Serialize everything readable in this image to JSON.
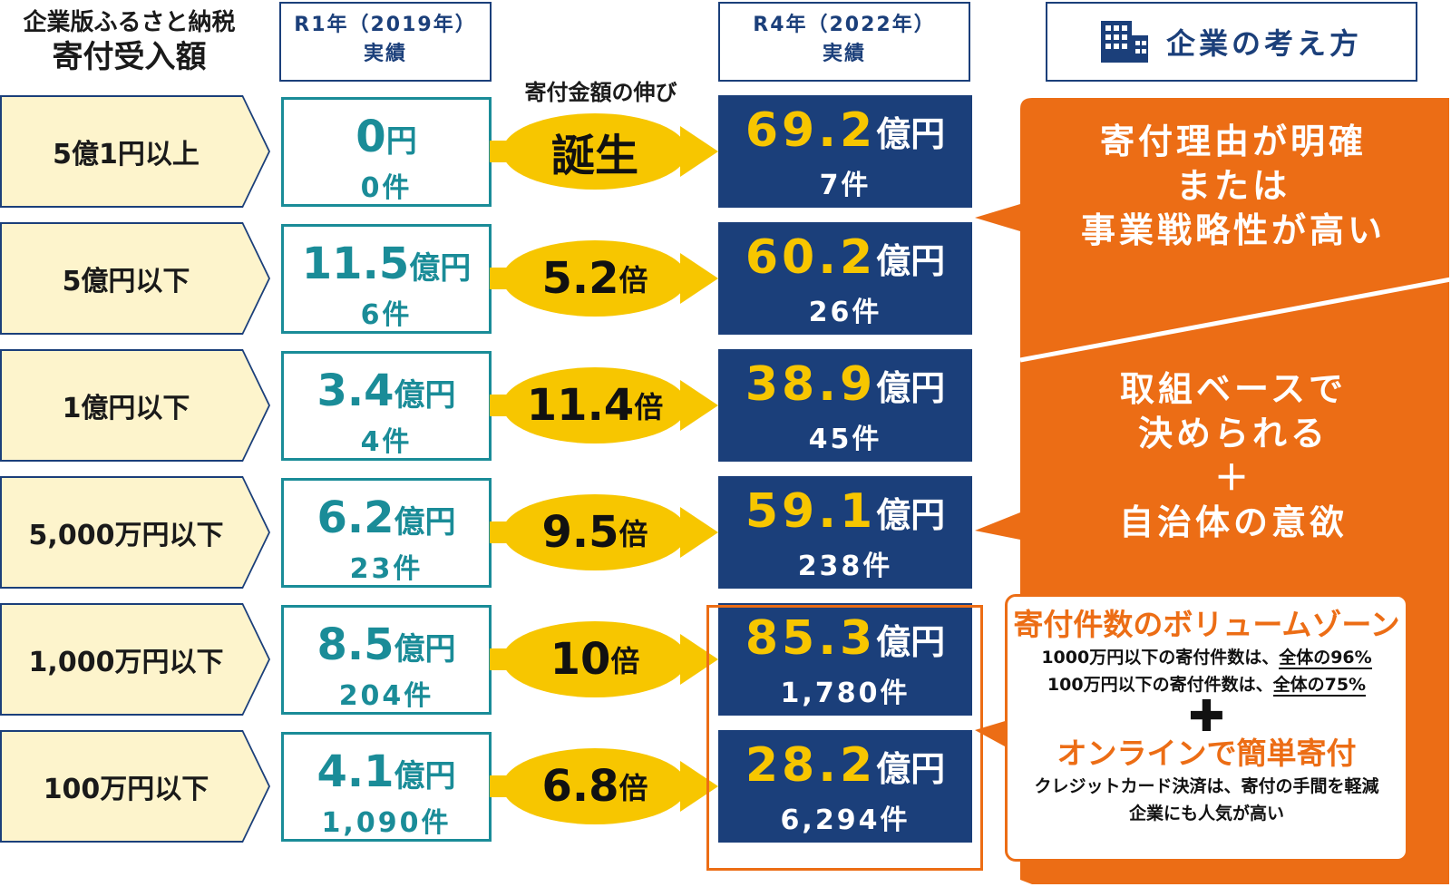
{
  "header": {
    "left_line1": "企業版ふるさと納税",
    "left_line2": "寄付受入額",
    "r1_line1": "R1年（2019年）",
    "r1_line2": "実績",
    "growth": "寄付金額の伸び",
    "r4_line1": "R4年（2022年）",
    "r4_line2": "実績",
    "think": "企業の考え方",
    "think_icon": "building-icon"
  },
  "rows": [
    {
      "category": "5億1円以上",
      "r1_amount": "0",
      "r1_unit": "円",
      "r1_count": "0件",
      "growth": "誕生",
      "growth_unit": "",
      "r4_amount": "69.2",
      "r4_unit": "億円",
      "r4_count": "7件"
    },
    {
      "category": "5億円以下",
      "r1_amount": "11.5",
      "r1_unit": "億円",
      "r1_count": "6件",
      "growth": "5.2",
      "growth_unit": "倍",
      "r4_amount": "60.2",
      "r4_unit": "億円",
      "r4_count": "26件"
    },
    {
      "category": "1億円以下",
      "r1_amount": "3.4",
      "r1_unit": "億円",
      "r1_count": "4件",
      "growth": "11.4",
      "growth_unit": "倍",
      "r4_amount": "38.9",
      "r4_unit": "億円",
      "r4_count": "45件"
    },
    {
      "category": "5,000万円以下",
      "r1_amount": "6.2",
      "r1_unit": "億円",
      "r1_count": "23件",
      "growth": "9.5",
      "growth_unit": "倍",
      "r4_amount": "59.1",
      "r4_unit": "億円",
      "r4_count": "238件"
    },
    {
      "category": "1,000万円以下",
      "r1_amount": "8.5",
      "r1_unit": "億円",
      "r1_count": "204件",
      "growth": "10",
      "growth_unit": "倍",
      "r4_amount": "85.3",
      "r4_unit": "億円",
      "r4_count": "1,780件"
    },
    {
      "category": "100万円以下",
      "r1_amount": "4.1",
      "r1_unit": "億円",
      "r1_count": "1,090件",
      "growth": "6.8",
      "growth_unit": "倍",
      "r4_amount": "28.2",
      "r4_unit": "億円",
      "r4_count": "6,294件"
    }
  ],
  "think": {
    "block1": [
      "寄付理由が明確",
      "または",
      "事業戦略性が高い"
    ],
    "block2": [
      "取組ベースで",
      "決められる",
      "＋",
      "自治体の意欲"
    ],
    "volume_title": "寄付件数のボリュームゾーン",
    "volume_line1_pre": "1000万円以下の寄付件数は、",
    "volume_line1_em": "全体の96%",
    "volume_line2_pre": "100万円以下の寄付件数は、",
    "volume_line2_em": "全体の75%",
    "plus": "✚",
    "online_title": "オンラインで簡単寄付",
    "online_line1": "クレジットカード決済は、寄付の手間を軽減",
    "online_line2": "企業にも人気が高い"
  },
  "colors": {
    "navy": "#1b3f7a",
    "teal": "#1a8c98",
    "yellow": "#f7c600",
    "cream": "#fdf4cc",
    "orange": "#ec6d15"
  }
}
